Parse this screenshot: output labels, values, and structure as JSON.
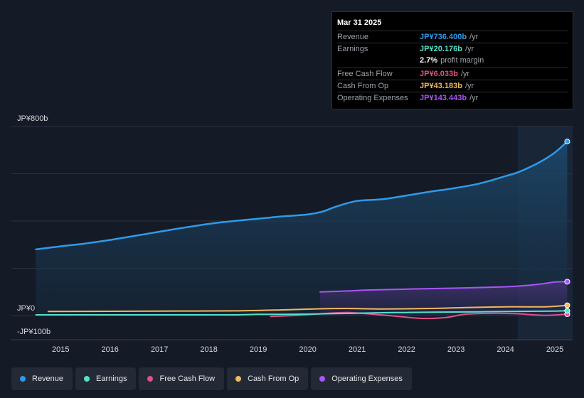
{
  "tooltip": {
    "date": "Mar 31 2025",
    "rows": [
      {
        "label": "Revenue",
        "value": "JP¥736.400b",
        "unit": "/yr",
        "color": "#2f9ae8"
      },
      {
        "label": "Earnings",
        "value": "JP¥20.176b",
        "unit": "/yr",
        "color": "#55e0cc"
      },
      {
        "label": "",
        "value": "2.7%",
        "unit": "profit margin",
        "color": "#ffffff"
      },
      {
        "label": "Free Cash Flow",
        "value": "JP¥6.033b",
        "unit": "/yr",
        "color": "#e0508a"
      },
      {
        "label": "Cash From Op",
        "value": "JP¥43.183b",
        "unit": "/yr",
        "color": "#f0b860"
      },
      {
        "label": "Operating Expenses",
        "value": "JP¥143.443b",
        "unit": "/yr",
        "color": "#a855f7"
      }
    ]
  },
  "legend": [
    {
      "label": "Revenue",
      "color": "#2f9ae8"
    },
    {
      "label": "Earnings",
      "color": "#55e0cc"
    },
    {
      "label": "Free Cash Flow",
      "color": "#e0508a"
    },
    {
      "label": "Cash From Op",
      "color": "#f0b860"
    },
    {
      "label": "Operating Expenses",
      "color": "#a855f7"
    }
  ],
  "chart_data": {
    "type": "line",
    "units": "JP¥ billions",
    "ylim": [
      -100,
      800
    ],
    "y_labels": [
      {
        "value": 800,
        "text": "JP¥800b"
      },
      {
        "value": 0,
        "text": "JP¥0"
      },
      {
        "value": -100,
        "text": "-JP¥100b"
      }
    ],
    "x_ticks": [
      "2015",
      "2016",
      "2017",
      "2018",
      "2019",
      "2020",
      "2021",
      "2022",
      "2023",
      "2024",
      "2025"
    ],
    "xlim": [
      2014.45,
      2025.33
    ],
    "forecast_from": 2024.25,
    "series": [
      {
        "name": "Revenue",
        "color": "#2f9ae8",
        "filled": true,
        "points": [
          [
            2014.5,
            280
          ],
          [
            2015.0,
            293
          ],
          [
            2015.5,
            305
          ],
          [
            2016.0,
            320
          ],
          [
            2016.5,
            337
          ],
          [
            2017.0,
            355
          ],
          [
            2017.5,
            372
          ],
          [
            2018.0,
            388
          ],
          [
            2018.5,
            400
          ],
          [
            2019.0,
            410
          ],
          [
            2019.5,
            420
          ],
          [
            2020.0,
            428
          ],
          [
            2020.3,
            440
          ],
          [
            2020.6,
            463
          ],
          [
            2021.0,
            485
          ],
          [
            2021.5,
            492
          ],
          [
            2022.0,
            508
          ],
          [
            2022.5,
            525
          ],
          [
            2023.0,
            540
          ],
          [
            2023.5,
            560
          ],
          [
            2024.0,
            590
          ],
          [
            2024.3,
            610
          ],
          [
            2024.7,
            650
          ],
          [
            2025.0,
            690
          ],
          [
            2025.25,
            736.4
          ]
        ]
      },
      {
        "name": "Operating Expenses",
        "color": "#a855f7",
        "filled": true,
        "points": [
          [
            2020.25,
            100
          ],
          [
            2020.8,
            104
          ],
          [
            2021.2,
            108
          ],
          [
            2022.0,
            112
          ],
          [
            2023.0,
            116
          ],
          [
            2023.9,
            121
          ],
          [
            2024.3,
            125
          ],
          [
            2024.7,
            133
          ],
          [
            2025.0,
            142
          ],
          [
            2025.25,
            143.4
          ]
        ]
      },
      {
        "name": "Cash From Op",
        "color": "#f0b860",
        "filled": false,
        "points": [
          [
            2014.75,
            17
          ],
          [
            2016.0,
            18
          ],
          [
            2017.0,
            19
          ],
          [
            2018.5,
            20
          ],
          [
            2019.5,
            24
          ],
          [
            2020.3,
            29
          ],
          [
            2020.8,
            30
          ],
          [
            2021.5,
            28
          ],
          [
            2022.5,
            30
          ],
          [
            2023.2,
            34
          ],
          [
            2024.0,
            37
          ],
          [
            2024.8,
            37
          ],
          [
            2025.25,
            43.2
          ]
        ]
      },
      {
        "name": "Free Cash Flow",
        "color": "#e0508a",
        "filled": false,
        "points": [
          [
            2019.25,
            -4
          ],
          [
            2019.8,
            1
          ],
          [
            2020.3,
            8
          ],
          [
            2020.8,
            13
          ],
          [
            2021.3,
            6
          ],
          [
            2021.8,
            -3
          ],
          [
            2022.3,
            -12
          ],
          [
            2022.8,
            -8
          ],
          [
            2023.2,
            6
          ],
          [
            2023.8,
            10
          ],
          [
            2024.2,
            8
          ],
          [
            2024.8,
            1
          ],
          [
            2025.25,
            6.0
          ]
        ]
      },
      {
        "name": "Earnings",
        "color": "#55e0cc",
        "filled": false,
        "points": [
          [
            2014.5,
            3
          ],
          [
            2015.5,
            3
          ],
          [
            2016.5,
            3
          ],
          [
            2017.5,
            3
          ],
          [
            2018.5,
            3
          ],
          [
            2019.0,
            5
          ],
          [
            2019.5,
            5
          ],
          [
            2020.0,
            6
          ],
          [
            2020.5,
            8
          ],
          [
            2021.0,
            10
          ],
          [
            2021.5,
            12
          ],
          [
            2022.0,
            13
          ],
          [
            2022.5,
            14
          ],
          [
            2023.0,
            15
          ],
          [
            2023.5,
            16
          ],
          [
            2024.0,
            17
          ],
          [
            2024.5,
            18
          ],
          [
            2025.0,
            19
          ],
          [
            2025.25,
            20.2
          ]
        ]
      }
    ]
  }
}
